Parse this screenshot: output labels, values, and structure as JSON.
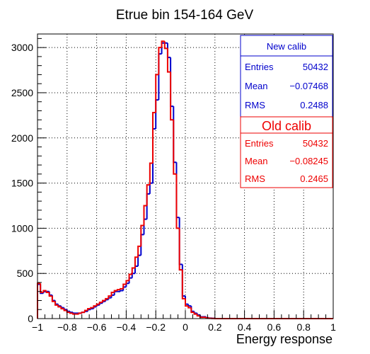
{
  "chart_data": {
    "type": "histogram",
    "title": "Etrue bin 154-164 GeV",
    "xlabel": "Energy response",
    "ylabel": "",
    "xlim": [
      -1,
      1
    ],
    "ylim": [
      0,
      3150
    ],
    "x_ticks": [
      "−1",
      "−0.8",
      "−0.6",
      "−0.4",
      "−0.2",
      "0",
      "0.2",
      "0.4",
      "0.6",
      "0.8",
      "1"
    ],
    "y_ticks": [
      "0",
      "500",
      "1000",
      "1500",
      "2000",
      "2500",
      "3000"
    ],
    "grid": true,
    "bin_width": 0.02,
    "series": [
      {
        "name": "New calib",
        "color": "#0000cc",
        "bin_lefts": [
          -1.0,
          -0.98,
          -0.96,
          -0.94,
          -0.92,
          -0.9,
          -0.88,
          -0.86,
          -0.84,
          -0.82,
          -0.8,
          -0.78,
          -0.76,
          -0.74,
          -0.72,
          -0.7,
          -0.68,
          -0.66,
          -0.64,
          -0.62,
          -0.6,
          -0.58,
          -0.56,
          -0.54,
          -0.52,
          -0.5,
          -0.48,
          -0.46,
          -0.44,
          -0.42,
          -0.4,
          -0.38,
          -0.36,
          -0.34,
          -0.32,
          -0.3,
          -0.28,
          -0.26,
          -0.24,
          -0.22,
          -0.2,
          -0.18,
          -0.16,
          -0.14,
          -0.12,
          -0.1,
          -0.08,
          -0.06,
          -0.04,
          -0.02,
          0.0,
          0.02,
          0.04,
          0.06,
          0.08,
          0.1,
          0.12,
          0.14,
          0.16,
          0.18,
          0.2,
          0.22,
          0.24,
          0.26,
          0.28,
          0.3,
          0.32,
          0.34,
          0.36,
          0.38,
          0.4,
          0.42,
          0.44,
          0.46,
          0.48,
          0.5,
          0.52,
          0.54,
          0.56,
          0.58,
          0.6,
          0.62,
          0.64,
          0.66,
          0.68,
          0.7,
          0.72,
          0.74,
          0.76,
          0.78,
          0.8,
          0.82,
          0.84,
          0.86,
          0.88,
          0.9,
          0.92,
          0.94,
          0.96,
          0.98
        ],
        "values": [
          380,
          280,
          300,
          300,
          260,
          200,
          160,
          140,
          120,
          100,
          80,
          70,
          60,
          60,
          60,
          70,
          80,
          100,
          110,
          130,
          150,
          170,
          190,
          210,
          230,
          260,
          300,
          300,
          310,
          350,
          390,
          450,
          500,
          580,
          700,
          930,
          1100,
          1380,
          1500,
          2100,
          2420,
          2930,
          3050,
          3050,
          2890,
          2350,
          1730,
          1120,
          600,
          250,
          160,
          140,
          80,
          60,
          40,
          20,
          20,
          10,
          5,
          3,
          0,
          0,
          0,
          0,
          0,
          0,
          0,
          0,
          0,
          0,
          0,
          0,
          0,
          0,
          0,
          0,
          0,
          0,
          0,
          0,
          0,
          0,
          0,
          0,
          0,
          0,
          0,
          0,
          0,
          0,
          0,
          0,
          0,
          0,
          0,
          0,
          0,
          0,
          0,
          0,
          0
        ],
        "stats": {
          "entries_label": "Entries",
          "entries": "50432",
          "mean_label": "Mean",
          "mean": "−0.07468",
          "rms_label": "RMS",
          "rms": "0.2488"
        }
      },
      {
        "name": "Old calib",
        "color": "#ee0000",
        "bin_lefts": [
          -1.0,
          -0.98,
          -0.96,
          -0.94,
          -0.92,
          -0.9,
          -0.88,
          -0.86,
          -0.84,
          -0.82,
          -0.8,
          -0.78,
          -0.76,
          -0.74,
          -0.72,
          -0.7,
          -0.68,
          -0.66,
          -0.64,
          -0.62,
          -0.6,
          -0.58,
          -0.56,
          -0.54,
          -0.52,
          -0.5,
          -0.48,
          -0.46,
          -0.44,
          -0.42,
          -0.4,
          -0.38,
          -0.36,
          -0.34,
          -0.32,
          -0.3,
          -0.28,
          -0.26,
          -0.24,
          -0.22,
          -0.2,
          -0.18,
          -0.16,
          -0.14,
          -0.12,
          -0.1,
          -0.08,
          -0.06,
          -0.04,
          -0.02,
          0.0,
          0.02,
          0.04,
          0.06,
          0.08,
          0.1,
          0.12,
          0.14,
          0.16,
          0.18,
          0.2,
          0.22,
          0.24,
          0.26,
          0.28,
          0.3,
          0.32,
          0.34,
          0.36,
          0.38,
          0.4,
          0.42,
          0.44,
          0.46,
          0.48,
          0.5,
          0.52,
          0.54,
          0.56,
          0.58,
          0.6,
          0.62,
          0.64,
          0.66,
          0.68,
          0.7,
          0.72,
          0.74,
          0.76,
          0.78,
          0.8,
          0.82,
          0.84,
          0.86,
          0.88,
          0.9,
          0.92,
          0.94,
          0.96,
          0.98
        ],
        "values": [
          390,
          290,
          310,
          290,
          250,
          190,
          150,
          130,
          110,
          90,
          70,
          60,
          50,
          50,
          60,
          70,
          90,
          110,
          120,
          140,
          160,
          180,
          200,
          220,
          250,
          290,
          310,
          320,
          330,
          380,
          420,
          490,
          560,
          680,
          800,
          1030,
          1250,
          1480,
          1720,
          2280,
          2700,
          3000,
          3070,
          2990,
          2730,
          2200,
          1600,
          1000,
          540,
          220,
          140,
          120,
          70,
          50,
          30,
          15,
          15,
          8,
          3,
          2,
          0,
          0,
          0,
          0,
          0,
          0,
          0,
          0,
          0,
          0,
          0,
          0,
          0,
          0,
          0,
          0,
          0,
          0,
          0,
          0,
          0,
          0,
          0,
          0,
          0,
          0,
          0,
          0,
          0,
          0,
          0,
          0,
          0,
          0,
          0,
          0,
          0,
          0,
          0,
          0,
          0
        ],
        "stats": {
          "entries_label": "Entries",
          "entries": "50432",
          "mean_label": "Mean",
          "mean": "−0.08245",
          "rms_label": "RMS",
          "rms": "0.2465"
        }
      }
    ]
  }
}
